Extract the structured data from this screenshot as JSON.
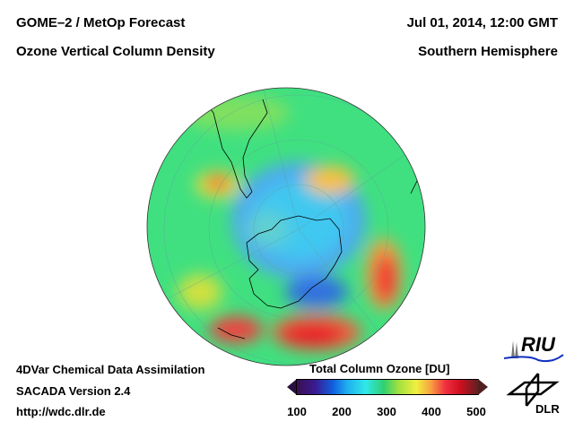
{
  "header": {
    "title_left_1": "GOME–2 / MetOp Forecast",
    "title_left_2": "Ozone Vertical Column Density",
    "title_right_1": "Jul 01, 2014, 12:00 GMT",
    "title_right_2": "Southern Hemisphere"
  },
  "footer": {
    "line1": "4DVar Chemical Data Assimilation",
    "line2": "SACADA Version 2.4",
    "line3": "http://wdc.dlr.de"
  },
  "colorbar": {
    "title": "Total Column Ozone [DU]",
    "ticks": [
      "100",
      "200",
      "300",
      "400",
      "500"
    ],
    "min": 100,
    "max": 500
  },
  "logos": {
    "riu": "RIU",
    "dlr": "DLR"
  }
}
